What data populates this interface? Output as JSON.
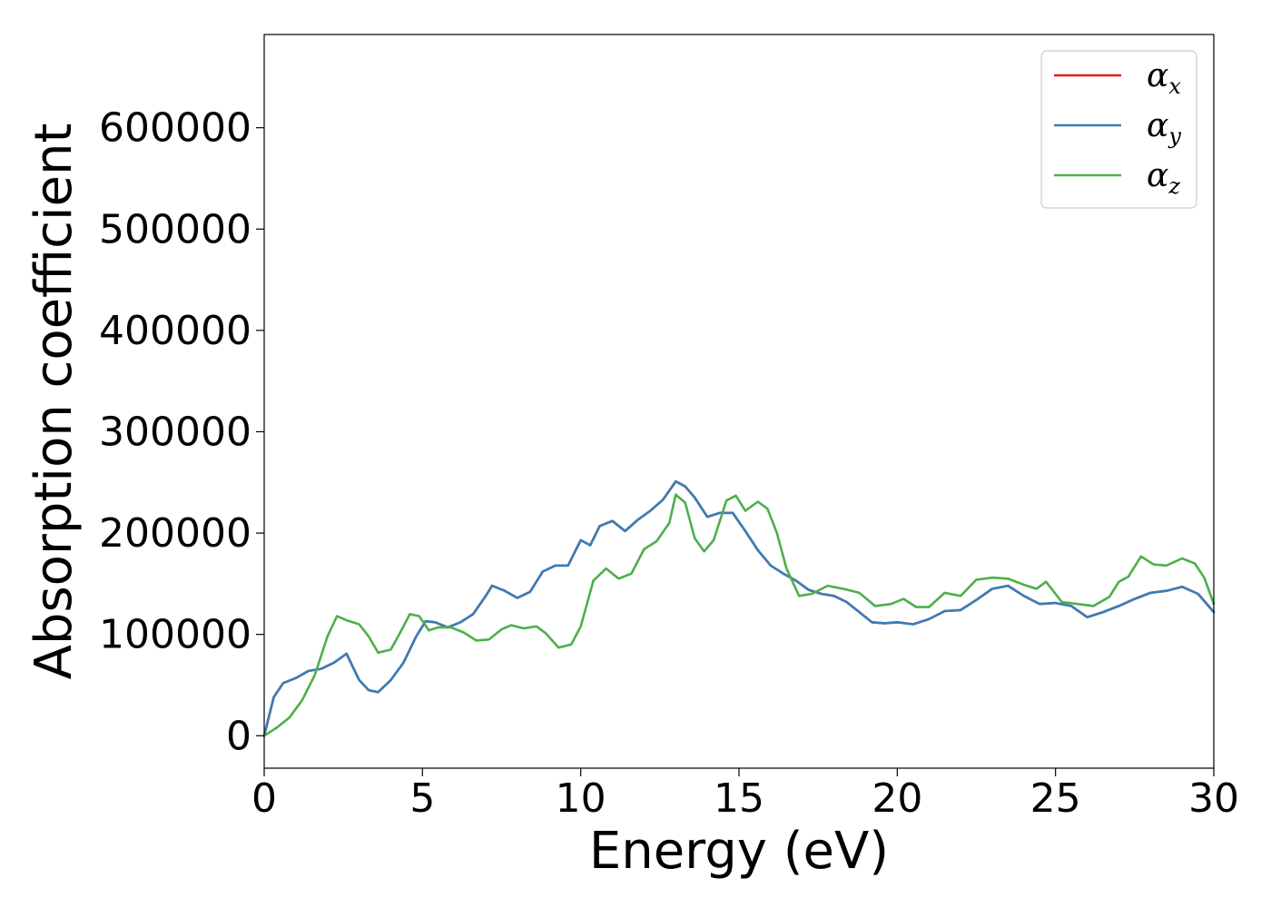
{
  "chart_data": {
    "type": "line",
    "title": "",
    "xlabel": "Energy (eV)",
    "ylabel": "Absorption coefficient",
    "xlim": [
      0,
      30
    ],
    "ylim": [
      -32000,
      692000
    ],
    "xticks": [
      0,
      5,
      10,
      15,
      20,
      25,
      30
    ],
    "xtick_labels": [
      "0",
      "5",
      "10",
      "15",
      "20",
      "25",
      "30"
    ],
    "yticks": [
      0,
      100000,
      200000,
      300000,
      400000,
      500000,
      600000
    ],
    "ytick_labels": [
      "0",
      "100000",
      "200000",
      "300000",
      "400000",
      "500000",
      "600000"
    ],
    "grid": false,
    "legend_position": "top-right",
    "series": [
      {
        "name": "α",
        "subscript": "x",
        "color": "#e41a1c",
        "x": [
          0,
          0.3,
          0.6,
          1.0,
          1.4,
          1.8,
          2.2,
          2.6,
          3.0,
          3.3,
          3.6,
          4.0,
          4.4,
          4.8,
          5.1,
          5.4,
          5.8,
          6.2,
          6.6,
          7.0,
          7.2,
          7.6,
          8.0,
          8.4,
          8.8,
          9.2,
          9.6,
          10.0,
          10.3,
          10.6,
          11.0,
          11.4,
          11.8,
          12.2,
          12.6,
          13.0,
          13.3,
          13.6,
          14.0,
          14.4,
          14.8,
          15.2,
          15.6,
          16.0,
          16.4,
          16.8,
          17.2,
          17.6,
          18.0,
          18.4,
          18.8,
          19.2,
          19.6,
          20.0,
          20.5,
          21.0,
          21.5,
          22.0,
          22.5,
          23.0,
          23.5,
          24.0,
          24.5,
          25.0,
          25.5,
          26.0,
          26.5,
          27.0,
          27.5,
          28.0,
          28.5,
          29.0,
          29.5,
          30.0
        ],
        "y": [
          0,
          38000,
          52000,
          57000,
          64000,
          66000,
          72000,
          81000,
          55000,
          45000,
          43000,
          55000,
          72000,
          98000,
          113000,
          112000,
          107000,
          112000,
          120000,
          138000,
          148000,
          143000,
          136000,
          142000,
          162000,
          168000,
          168000,
          193000,
          188000,
          207000,
          212000,
          202000,
          213000,
          222000,
          233000,
          251000,
          246000,
          235000,
          216000,
          220000,
          220000,
          202000,
          183000,
          168000,
          160000,
          153000,
          144000,
          140000,
          138000,
          132000,
          122000,
          112000,
          111000,
          112000,
          110000,
          115000,
          123000,
          124000,
          134000,
          145000,
          148000,
          138000,
          130000,
          131000,
          128000,
          117000,
          122000,
          128000,
          135000,
          141000,
          143000,
          147000,
          140000,
          122000
        ]
      },
      {
        "name": "α",
        "subscript": "y",
        "color": "#377eb8",
        "x": [
          0,
          0.3,
          0.6,
          1.0,
          1.4,
          1.8,
          2.2,
          2.6,
          3.0,
          3.3,
          3.6,
          4.0,
          4.4,
          4.8,
          5.1,
          5.4,
          5.8,
          6.2,
          6.6,
          7.0,
          7.2,
          7.6,
          8.0,
          8.4,
          8.8,
          9.2,
          9.6,
          10.0,
          10.3,
          10.6,
          11.0,
          11.4,
          11.8,
          12.2,
          12.6,
          13.0,
          13.3,
          13.6,
          14.0,
          14.4,
          14.8,
          15.2,
          15.6,
          16.0,
          16.4,
          16.8,
          17.2,
          17.6,
          18.0,
          18.4,
          18.8,
          19.2,
          19.6,
          20.0,
          20.5,
          21.0,
          21.5,
          22.0,
          22.5,
          23.0,
          23.5,
          24.0,
          24.5,
          25.0,
          25.5,
          26.0,
          26.5,
          27.0,
          27.5,
          28.0,
          28.5,
          29.0,
          29.5,
          30.0
        ],
        "y": [
          0,
          38000,
          52000,
          57000,
          64000,
          66000,
          72000,
          81000,
          55000,
          45000,
          43000,
          55000,
          72000,
          98000,
          113000,
          112000,
          107000,
          112000,
          120000,
          138000,
          148000,
          143000,
          136000,
          142000,
          162000,
          168000,
          168000,
          193000,
          188000,
          207000,
          212000,
          202000,
          213000,
          222000,
          233000,
          251000,
          246000,
          235000,
          216000,
          220000,
          220000,
          202000,
          183000,
          168000,
          160000,
          153000,
          144000,
          140000,
          138000,
          132000,
          122000,
          112000,
          111000,
          112000,
          110000,
          115000,
          123000,
          124000,
          134000,
          145000,
          148000,
          138000,
          130000,
          131000,
          128000,
          117000,
          122000,
          128000,
          135000,
          141000,
          143000,
          147000,
          140000,
          122000
        ]
      },
      {
        "name": "α",
        "subscript": "z",
        "color": "#4daf4a",
        "x": [
          0,
          0.4,
          0.8,
          1.2,
          1.6,
          2.0,
          2.3,
          2.6,
          3.0,
          3.3,
          3.6,
          4.0,
          4.3,
          4.6,
          4.9,
          5.2,
          5.5,
          5.9,
          6.3,
          6.7,
          7.1,
          7.5,
          7.8,
          8.2,
          8.6,
          8.9,
          9.3,
          9.7,
          10.0,
          10.4,
          10.8,
          11.2,
          11.6,
          12.0,
          12.4,
          12.8,
          13.0,
          13.3,
          13.6,
          13.9,
          14.2,
          14.6,
          14.9,
          15.2,
          15.6,
          15.9,
          16.2,
          16.5,
          16.9,
          17.3,
          17.8,
          18.3,
          18.8,
          19.3,
          19.8,
          20.2,
          20.6,
          21.0,
          21.5,
          22.0,
          22.5,
          23.0,
          23.5,
          24.0,
          24.4,
          24.7,
          25.2,
          25.7,
          26.2,
          26.7,
          27.0,
          27.3,
          27.7,
          28.1,
          28.5,
          29.0,
          29.4,
          29.7,
          30.0
        ],
        "y": [
          0,
          8000,
          18000,
          35000,
          60000,
          98000,
          118000,
          114000,
          110000,
          98000,
          82000,
          85000,
          102000,
          120000,
          118000,
          104000,
          107000,
          107000,
          102000,
          94000,
          95000,
          105000,
          109000,
          106000,
          108000,
          101000,
          87000,
          90000,
          108000,
          153000,
          165000,
          155000,
          160000,
          184000,
          192000,
          210000,
          238000,
          230000,
          195000,
          182000,
          193000,
          232000,
          237000,
          222000,
          231000,
          224000,
          200000,
          165000,
          138000,
          140000,
          148000,
          145000,
          141000,
          128000,
          130000,
          135000,
          127000,
          127000,
          141000,
          138000,
          154000,
          156000,
          155000,
          149000,
          145000,
          152000,
          132000,
          130000,
          128000,
          137000,
          152000,
          157000,
          177000,
          169000,
          168000,
          175000,
          170000,
          156000,
          130000
        ]
      }
    ]
  }
}
